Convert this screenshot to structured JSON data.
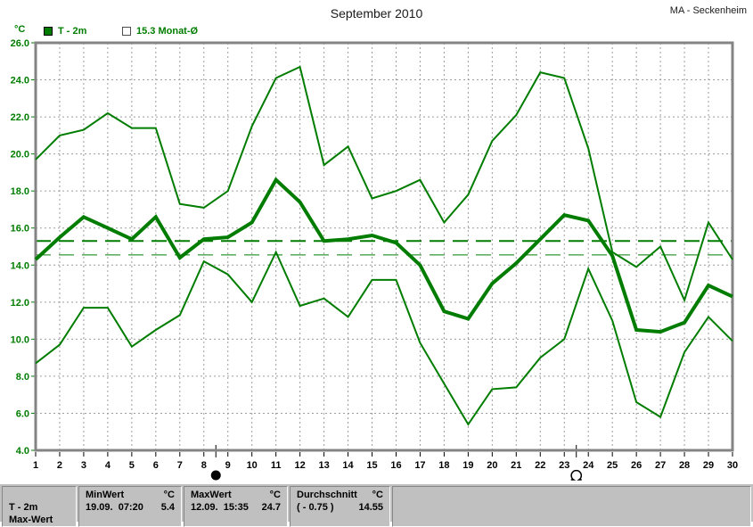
{
  "window": {
    "title": "September 2010",
    "station": "MA - Seckenheim"
  },
  "legend": {
    "unit": "°C",
    "series1": {
      "label": "T - 2m",
      "swatch_color": "#007d00"
    },
    "series2": {
      "label": "15.3 Monat-Ø"
    }
  },
  "chart_data": {
    "type": "line",
    "title": "September 2010",
    "ylabel": "°C",
    "ylim": [
      4.0,
      26.0
    ],
    "ytick_labels": [
      "26.0",
      "24.0",
      "22.0",
      "20.0",
      "18.0",
      "16.0",
      "14.0",
      "12.0",
      "10.0",
      "8.0",
      "6.0",
      "4.0"
    ],
    "x": [
      1,
      2,
      3,
      4,
      5,
      6,
      7,
      8,
      9,
      10,
      11,
      12,
      13,
      14,
      15,
      16,
      17,
      18,
      19,
      20,
      21,
      22,
      23,
      24,
      25,
      26,
      27,
      28,
      29,
      30
    ],
    "grid": true,
    "line_color": "#007d00",
    "series": [
      {
        "key": "daily-max",
        "thick": false,
        "values": [
          19.7,
          21.0,
          21.3,
          22.2,
          21.4,
          21.4,
          17.3,
          17.1,
          18.0,
          21.5,
          24.1,
          24.7,
          19.4,
          20.4,
          17.6,
          18.0,
          18.6,
          16.3,
          17.8,
          20.7,
          22.1,
          24.4,
          24.1,
          20.3,
          14.7,
          13.9,
          15.0,
          12.1,
          16.3,
          14.3
        ]
      },
      {
        "key": "daily-mean",
        "thick": true,
        "values": [
          14.3,
          15.5,
          16.6,
          16.0,
          15.4,
          16.6,
          14.4,
          15.4,
          15.5,
          16.3,
          18.6,
          17.4,
          15.3,
          15.4,
          15.6,
          15.2,
          14.0,
          11.5,
          11.1,
          13.0,
          14.1,
          15.4,
          16.7,
          16.4,
          14.5,
          10.5,
          10.4,
          10.9,
          12.9,
          12.3
        ]
      },
      {
        "key": "daily-min",
        "thick": false,
        "values": [
          8.7,
          9.7,
          11.7,
          11.7,
          9.6,
          10.5,
          11.3,
          14.2,
          13.5,
          12.0,
          14.7,
          11.8,
          12.2,
          11.2,
          13.2,
          13.2,
          9.8,
          7.6,
          5.4,
          7.3,
          7.4,
          9.0,
          10.0,
          13.8,
          11.0,
          6.6,
          5.8,
          9.3,
          11.2,
          9.9
        ]
      }
    ],
    "reference_lines": [
      {
        "label": "15.3 Monat-Ø",
        "value": 15.3
      },
      {
        "label": "Durchschnitt",
        "value": 14.55
      }
    ],
    "moon_phases": [
      {
        "symbol": "new-moon",
        "day": 8.5
      },
      {
        "symbol": "full-moon",
        "day": 23.5
      }
    ]
  },
  "status_bar": {
    "row_label": "T - 2m",
    "clipped_next_row_label": "Max-Wert",
    "min": {
      "header": "MinWert",
      "unit": "°C",
      "datetime": "19.09.  07:20",
      "value": "5.4"
    },
    "max": {
      "header": "MaxWert",
      "unit": "°C",
      "datetime": "12.09.  15:35",
      "value": "24.7"
    },
    "avg": {
      "header": "Durchschnitt",
      "unit": "°C",
      "deviation": "( - 0.75 )",
      "value": "14.55"
    }
  }
}
